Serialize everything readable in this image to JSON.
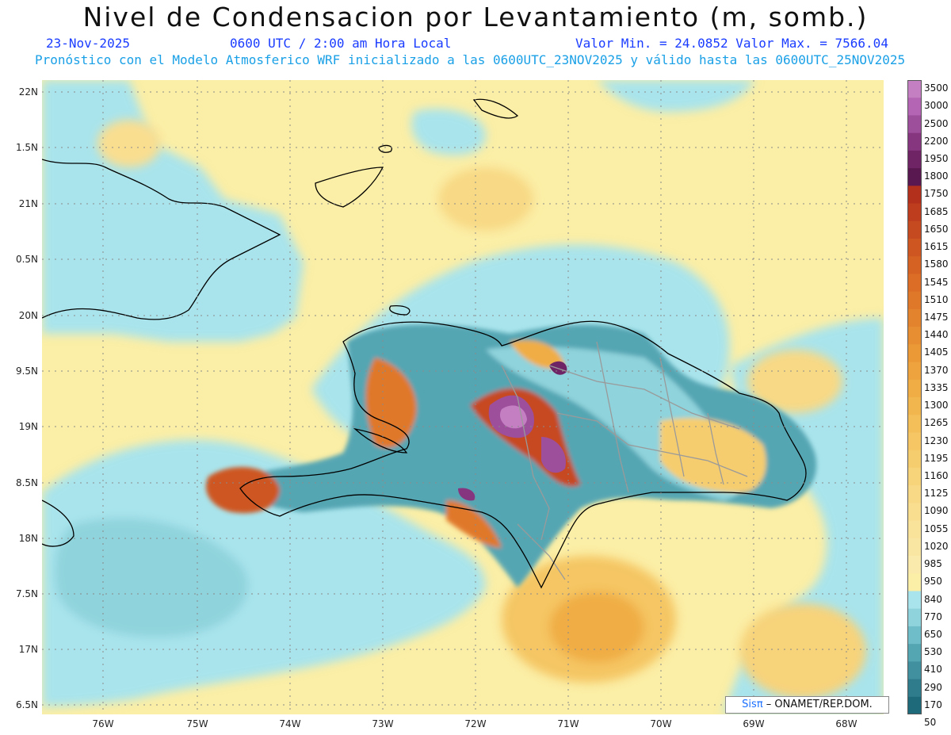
{
  "title": "Nivel de Condensacion por Levantamiento (m, somb.)",
  "header": {
    "date": "23-Nov-2025",
    "time": "0600 UTC / 2:00 am Hora Local",
    "min_max": "Valor Min. = 24.0852  Valor Max. = 7566.04",
    "run_info": "Pronóstico con el Modelo Atmosferico WRF inicializado a las 0600UTC_23NOV2025 y válido hasta las  0600UTC_25NOV2025"
  },
  "axes": {
    "y_labels": [
      "22N",
      "1.5N",
      "21N",
      "0.5N",
      "20N",
      "9.5N",
      "19N",
      "8.5N",
      "18N",
      "7.5N",
      "17N",
      "6.5N"
    ],
    "x_labels": [
      "76W",
      "75W",
      "74W",
      "73W",
      "72W",
      "71W",
      "70W",
      "69W",
      "68W"
    ]
  },
  "colorbar": {
    "labels": [
      "3500",
      "3000",
      "2500",
      "2200",
      "1950",
      "1800",
      "1750",
      "1685",
      "1650",
      "1615",
      "1580",
      "1545",
      "1510",
      "1475",
      "1440",
      "1405",
      "1370",
      "1335",
      "1300",
      "1265",
      "1230",
      "1195",
      "1160",
      "1125",
      "1090",
      "1055",
      "1020",
      "985",
      "950",
      "840",
      "770",
      "650",
      "530",
      "410",
      "290",
      "170",
      "50"
    ],
    "colors": [
      "#c47ec2",
      "#b466b4",
      "#9d4f9c",
      "#86367f",
      "#6f2466",
      "#5a1850",
      "#b3301c",
      "#bd3d1e",
      "#c64a20",
      "#ce5621",
      "#d56223",
      "#db6d26",
      "#e07829",
      "#e4832d",
      "#e88e32",
      "#eb9937",
      "#eea33e",
      "#f0ad45",
      "#f2b64e",
      "#f4be58",
      "#f5c663",
      "#f6cd6e",
      "#f7d37a",
      "#f8d985",
      "#f9de90",
      "#f9e29a",
      "#fae6a3",
      "#faeaac",
      "#fbeea6",
      "#a9e4ec",
      "#8fd3dc",
      "#6ebdc8",
      "#55a6b3",
      "#41909f",
      "#2f7c8c",
      "#1f6a7a"
    ]
  },
  "credit": {
    "brand": "Sis",
    "pi": "π",
    "text": "– ONAMET/REP.DOM."
  },
  "colors": {
    "title_blue": "#1a3cff",
    "subtitle_cyan": "#1aa0e6",
    "coast": "#000000",
    "border": "#9a9a9a"
  }
}
